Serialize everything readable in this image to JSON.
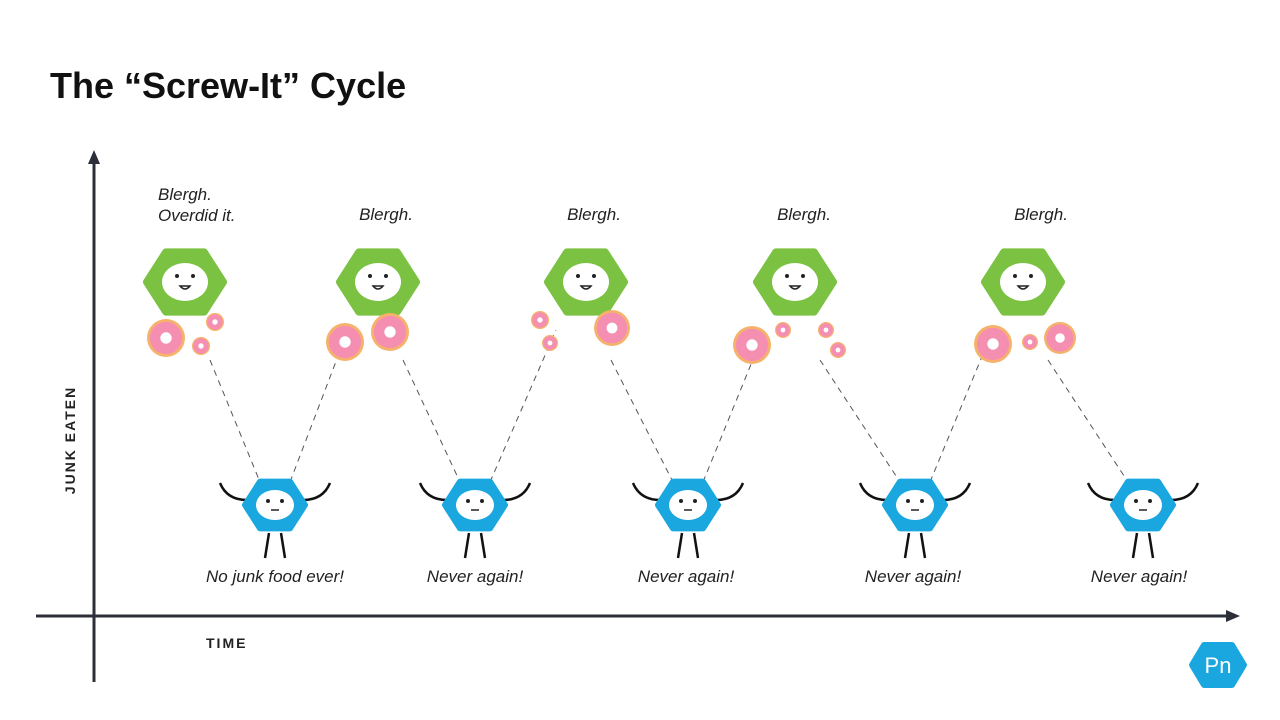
{
  "title": "The “Screw-It” Cycle",
  "axes": {
    "y_label": "JUNK EATEN",
    "x_label": "TIME"
  },
  "peaks": [
    {
      "lines": [
        "Blergh.",
        "Overdid it."
      ]
    },
    {
      "lines": [
        "Blergh."
      ]
    },
    {
      "lines": [
        "Blergh."
      ]
    },
    {
      "lines": [
        "Blergh."
      ]
    },
    {
      "lines": [
        "Blergh."
      ]
    }
  ],
  "troughs": [
    {
      "label": "No junk food ever!"
    },
    {
      "label": "Never again!"
    },
    {
      "label": "Never again!"
    },
    {
      "label": "Never again!"
    },
    {
      "label": "Never again!"
    }
  ],
  "logo": "Pn"
}
